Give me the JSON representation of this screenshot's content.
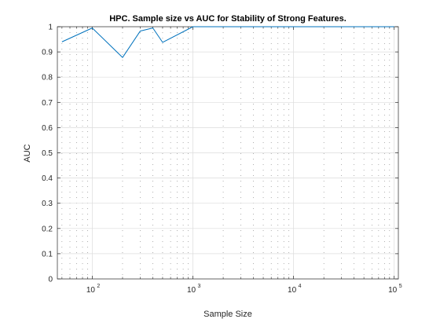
{
  "chart_data": {
    "type": "line",
    "title": "HPC. Sample size vs AUC for Stability of Strong Features.",
    "xlabel": "Sample Size",
    "ylabel": "AUC",
    "xscale": "log",
    "xlim": [
      45,
      110000
    ],
    "ylim": [
      0,
      1
    ],
    "yticks": [
      0,
      0.1,
      0.2,
      0.3,
      0.4,
      0.5,
      0.6,
      0.7,
      0.8,
      0.9,
      1
    ],
    "ytick_labels": [
      "0",
      "0.1",
      "0.2",
      "0.3",
      "0.4",
      "0.5",
      "0.6",
      "0.7",
      "0.8",
      "0.9",
      "1"
    ],
    "xticks": [
      {
        "value": 100,
        "base": "10",
        "exp": "2"
      },
      {
        "value": 1000,
        "base": "10",
        "exp": "3"
      },
      {
        "value": 10000,
        "base": "10",
        "exp": "4"
      },
      {
        "value": 100000,
        "base": "10",
        "exp": "5"
      }
    ],
    "grid": true,
    "minor_grid": true,
    "line_color": "#0072bd",
    "series": [
      {
        "x": [
          50,
          100,
          200,
          300,
          400,
          500,
          1000,
          2000,
          5000,
          10000,
          20000,
          50000,
          100000
        ],
        "y": [
          0.94,
          0.995,
          0.878,
          0.983,
          0.995,
          0.938,
          1,
          1,
          1,
          1,
          1,
          1,
          1
        ]
      }
    ]
  }
}
